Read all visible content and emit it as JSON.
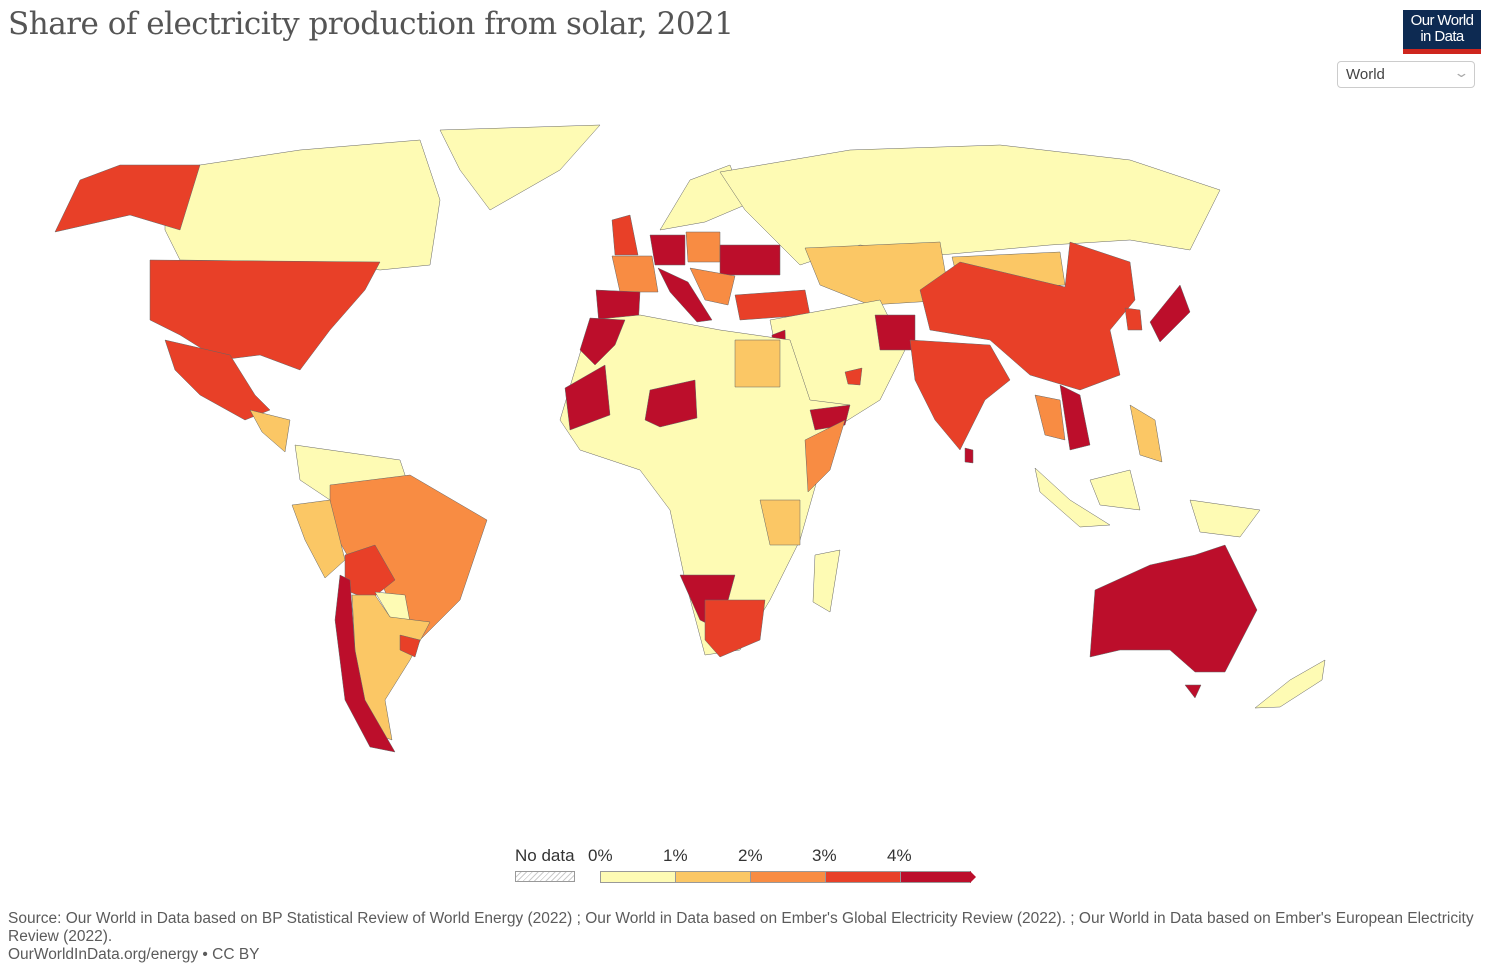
{
  "header": {
    "title": "Share of electricity production from solar, 2021",
    "logo_line1": "Our World",
    "logo_line2": "in Data",
    "region_select": "World"
  },
  "legend": {
    "no_data_label": "No data",
    "ticks": [
      "0%",
      "1%",
      "2%",
      "3%",
      "4%"
    ],
    "colors": [
      "#fefbb4",
      "#fbc765",
      "#f88c43",
      "#e84028",
      "#bc0e2b"
    ]
  },
  "chart_data": {
    "type": "choropleth",
    "title": "Share of electricity production from solar, 2021",
    "unit": "%",
    "bins": [
      [
        0,
        1
      ],
      [
        1,
        2
      ],
      [
        2,
        3
      ],
      [
        3,
        4
      ],
      [
        4,
        null
      ]
    ],
    "regions": {
      "canada": 0,
      "greenland": 0,
      "alaska": 3,
      "usa": 3,
      "mexico": 3,
      "central-america": 1,
      "colombia-venezuela": 0,
      "brazil": 2,
      "peru-ecuador": 1,
      "bolivia": 3,
      "chile": 4,
      "argentina": 1,
      "paraguay": 0,
      "uruguay": 3,
      "spain-portugal": 4,
      "france": 2,
      "uk": 3,
      "germany": 4,
      "italy": 4,
      "poland": 2,
      "scandinavia": 0,
      "ukraine-romania": 4,
      "balkans": 2,
      "turkey": 3,
      "russia": 0,
      "kazakhstan": 1,
      "mongolia": 1,
      "china": 3,
      "india": 3,
      "middle-east": 0,
      "afghanistan": 4,
      "egypt": 1,
      "israel-jordan": 4,
      "uae": 3,
      "africa": 0,
      "morocco": 4,
      "mauritania-senegal": 4,
      "niger-burkina": 4,
      "yemen": 4,
      "somalia-kenya": 2,
      "tanzania": 1,
      "namibia": 4,
      "south-africa": 3,
      "madagascar": 0,
      "thailand": 2,
      "vietnam": 4,
      "japan": 4,
      "korea": 3,
      "philippines": 1,
      "indonesia": 0,
      "australia": 4,
      "new-zealand": 0,
      "sri-lanka": 4
    }
  },
  "footer": {
    "source": "Source: Our World in Data based on BP Statistical Review of World Energy (2022) ; Our World in Data based on Ember's Global Electricity Review (2022). ; Our World in Data based on Ember's European Electricity Review (2022).",
    "url_license": "OurWorldInData.org/energy • CC BY"
  }
}
